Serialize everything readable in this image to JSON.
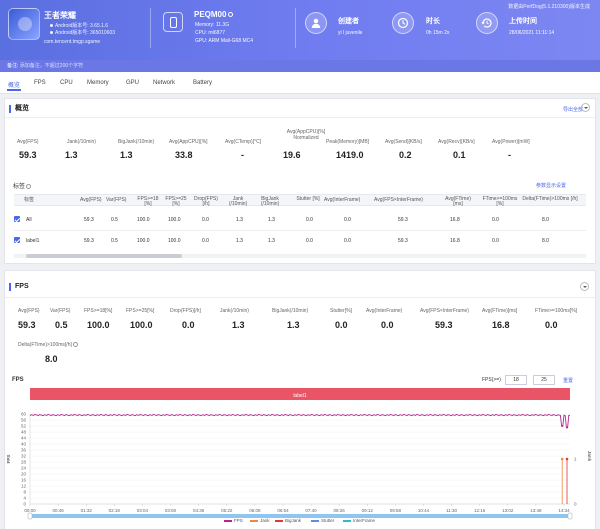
{
  "header": {
    "app_name": "王者荣耀",
    "app_version": "Android版本号: 3.65.1.6",
    "build_version": "Android版本号: 365010603",
    "package": "com.tencent.tmgp.sgame",
    "device_name": "PEQM00",
    "memory": "Memory: 11.3G",
    "cpu": "CPU: mt6877",
    "gpu": "GPU: ARM Mali-G68 MC4",
    "creator_label": "创建者",
    "creator_value": "yi l juvenile",
    "duration_label": "时长",
    "duration_value": "0h 15m 2s",
    "upload_label": "上传时间",
    "upload_value": "28/06/2021 11:11:14",
    "tool_version": "数据由PerfDog(5.1.210300)版本生成"
  },
  "note": {
    "label": "备注:",
    "placeholder": "添加备注，不超过200个字符"
  },
  "tabs": [
    "概览",
    "FPS",
    "CPU",
    "Memory",
    "GPU",
    "Network",
    "Battery"
  ],
  "overview": {
    "title": "概览",
    "export": "导出全部",
    "metrics": [
      {
        "label": "Avg(FPS)",
        "value": "59.3"
      },
      {
        "label": "Jank(/10min)",
        "value": "1.3"
      },
      {
        "label": "BigJank(/10min)",
        "value": "1.3"
      },
      {
        "label": "Avg(AppCPU)[%]",
        "value": "33.8"
      },
      {
        "label": "Avg(CTemp)[°C]",
        "value": "-"
      },
      {
        "label": "Avg(AppCPU)[%] Normalized",
        "value": "19.6"
      },
      {
        "label": "Peak(Memory)[MB]",
        "value": "1419.0"
      },
      {
        "label": "Avg(Send)[KB/s]",
        "value": "0.2"
      },
      {
        "label": "Avg(Recv)[KB/s]",
        "value": "0.1"
      },
      {
        "label": "Avg(Power)[mW]",
        "value": "-"
      }
    ],
    "labels_title": "标签",
    "param_settings": "参数显示设置",
    "columns": [
      "标签",
      "Avg(FPS)",
      "Var(FPS)",
      "FPS>=18 [%]",
      "FPS>=25 [%]",
      "Drop(FPS) [/h]",
      "Jank (/10min)",
      "BigJank (/10min)",
      "Stutter [%]",
      "Avg(InterFrame)",
      "Avg(FPS×InterFrame)",
      "Avg(FTime) [ms]",
      "FTime>=100ms [%]",
      "Delta(FTime)>100ms [/h]"
    ],
    "rows": [
      {
        "name": "All",
        "cells": [
          "59.3",
          "0.5",
          "100.0",
          "100.0",
          "0.0",
          "1.3",
          "1.3",
          "0.0",
          "0.0",
          "59.3",
          "16.8",
          "0.0",
          "8.0"
        ]
      },
      {
        "name": "label1",
        "cells": [
          "59.3",
          "0.5",
          "100.0",
          "100.0",
          "0.0",
          "1.3",
          "1.3",
          "0.0",
          "0.0",
          "59.3",
          "16.8",
          "0.0",
          "8.0"
        ]
      }
    ]
  },
  "fps": {
    "title": "FPS",
    "metrics": [
      {
        "label": "Avg(FPS)",
        "value": "59.3"
      },
      {
        "label": "Var(FPS)",
        "value": "0.5"
      },
      {
        "label": "FPS>=18[%]",
        "value": "100.0"
      },
      {
        "label": "FPS>=25[%]",
        "value": "100.0"
      },
      {
        "label": "Drop(FPS)[/h]",
        "value": "0.0"
      },
      {
        "label": "Jank(/10min)",
        "value": "1.3"
      },
      {
        "label": "BigJank(/10min)",
        "value": "1.3"
      },
      {
        "label": "Stutter[%]",
        "value": "0.0"
      },
      {
        "label": "Avg(InterFrame)",
        "value": "0.0"
      },
      {
        "label": "Avg(FPS×InterFrame)",
        "value": "59.3"
      },
      {
        "label": "Avg(FTime)[ms]",
        "value": "16.8"
      },
      {
        "label": "FTime>=100ms[%]",
        "value": "0.0"
      }
    ],
    "delta_label": "Delta(FTime)>100ms[/h]",
    "delta_value": "8.0",
    "chart_title": "FPS",
    "fps_filter_label": "FPS(>=)",
    "fps_filter_1": "18",
    "fps_filter_2": "25",
    "reset": "重置"
  },
  "chart_data": {
    "type": "line",
    "title": "FPS",
    "band_label": "label1",
    "ylabel": "FPS",
    "y2label": "Jank",
    "ylim": [
      0,
      60
    ],
    "y_ticks": [
      0,
      4,
      8,
      12,
      16,
      20,
      24,
      28,
      32,
      36,
      40,
      44,
      48,
      52,
      56,
      60
    ],
    "y2_ticks": [
      0,
      1
    ],
    "x_ticks": [
      "00:00",
      "00:46",
      "01:32",
      "02:18",
      "03:04",
      "03:50",
      "04:36",
      "05:22",
      "06:08",
      "06:54",
      "07:40",
      "08:26",
      "09:12",
      "09:58",
      "10:44",
      "11:30",
      "12:16",
      "13:02",
      "13:48",
      "14:34"
    ],
    "x_range_seconds": [
      0,
      902
    ],
    "series": [
      {
        "name": "FPS",
        "color": "#b5278f",
        "baseline": 59.3,
        "drops": [
          {
            "t": 889,
            "v": 52
          },
          {
            "t": 897,
            "v": 51
          }
        ]
      },
      {
        "name": "Jank",
        "color": "#f0873a",
        "events": [
          {
            "t": 889,
            "v": 1
          }
        ]
      },
      {
        "name": "BigJank",
        "color": "#e0383a",
        "events": [
          {
            "t": 897,
            "v": 1
          }
        ]
      },
      {
        "name": "Stutter",
        "color": "#5f8fd9",
        "events": []
      },
      {
        "name": "InterFrame",
        "color": "#37b7c9",
        "events": []
      }
    ]
  }
}
